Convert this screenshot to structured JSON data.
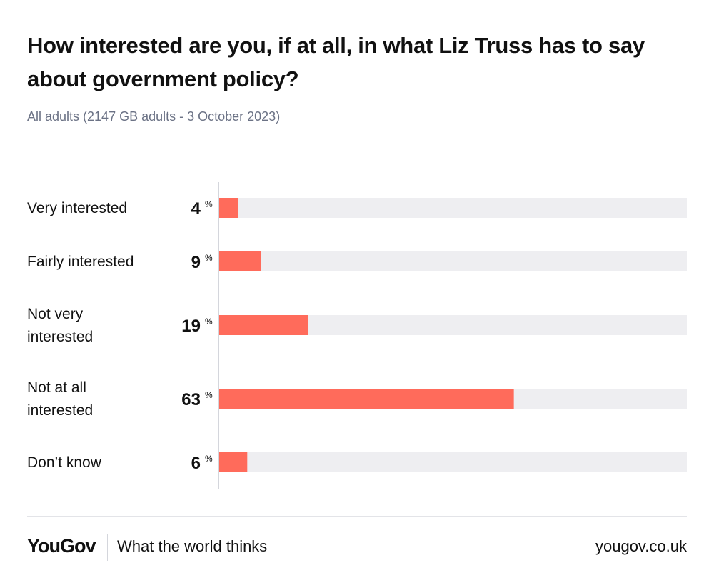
{
  "header": {
    "title": "How interested are you, if at all, in what Liz Truss has to say about government policy?",
    "subtitle": "All adults (2147 GB adults - 3 October 2023)"
  },
  "chart_data": {
    "type": "bar",
    "orientation": "horizontal",
    "title": "How interested are you, if at all, in what Liz Truss has to say about government policy?",
    "subtitle": "All adults (2147 GB adults - 3 October 2023)",
    "categories": [
      [
        "Very interested"
      ],
      [
        "Fairly interested"
      ],
      [
        "Not very",
        "interested"
      ],
      [
        "Not at all",
        "interested"
      ],
      [
        "Don’t know"
      ]
    ],
    "values": [
      4,
      9,
      19,
      63,
      6
    ],
    "unit": "%",
    "xlim": [
      0,
      100
    ],
    "grid": false,
    "legend": "none",
    "colors": {
      "bar": "#ff6b5b",
      "track": "#eeeef1",
      "axis": "#d4d6dc"
    }
  },
  "footer": {
    "brand": "YouGov",
    "tagline": "What the world thinks",
    "url": "yougov.co.uk"
  }
}
